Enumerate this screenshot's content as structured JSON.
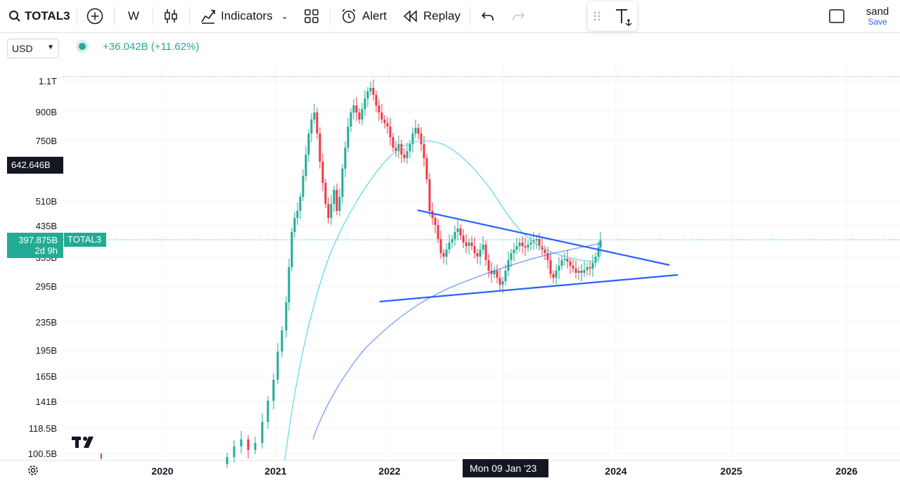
{
  "toolbar": {
    "symbol": "TOTAL3",
    "interval": "W",
    "indicators_label": "Indicators",
    "alert_label": "Alert",
    "replay_label": "Replay",
    "user_name": "sand",
    "save_label": "Save"
  },
  "legend": {
    "currency": "USD",
    "change_text": "+36.042B (+11.62%)"
  },
  "price_axis": {
    "ticks": [
      "1.1T",
      "900B",
      "750B",
      "510B",
      "435B",
      "355B",
      "295B",
      "235B",
      "195B",
      "165B",
      "141B",
      "118.5B",
      "100.5B"
    ],
    "crosshair_price": "642.646B",
    "last_price": "397.875B",
    "countdown": "2d 9h",
    "symbol_tag": "TOTAL3"
  },
  "time_axis": {
    "ticks": [
      "2020",
      "2021",
      "2022",
      "2024",
      "2025",
      "2026"
    ],
    "crosshair_date": "Mon 09 Jan '23"
  },
  "colors": {
    "up": "#22ab94",
    "down": "#f23645",
    "trendline": "#2962ff",
    "ma_fast": "#5ad8e6",
    "ma_slow": "#2962ff",
    "accent": "#2962ff"
  },
  "icons": {
    "search": "search-icon",
    "add": "plus-circle-icon",
    "candles": "candlestick-icon",
    "indicators": "indicators-icon",
    "layout": "grid-icon",
    "alert": "alarm-clock-icon",
    "replay": "rewind-icon",
    "undo": "undo-icon",
    "redo": "redo-icon",
    "text_tool": "text-anchor-icon",
    "fullscreen": "square-icon",
    "settings": "gear-icon",
    "logo": "tradingview-logo"
  }
}
